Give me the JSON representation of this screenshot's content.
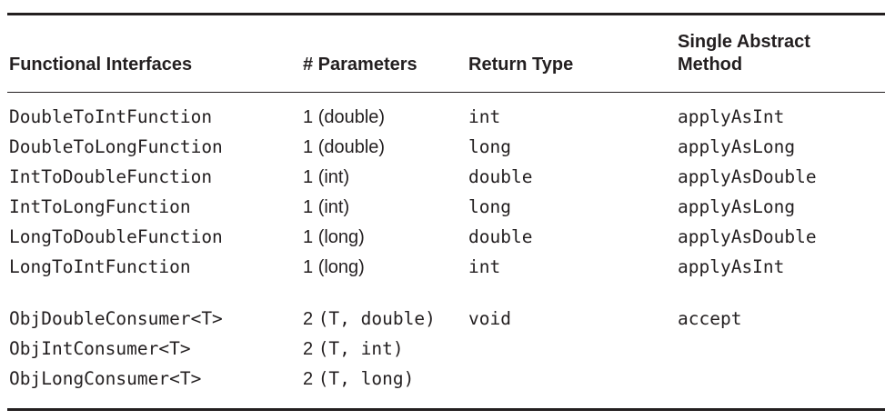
{
  "table": {
    "headers": {
      "interface": "Functional Interfaces",
      "params": "# Parameters",
      "return_type": "Return Type",
      "method": "Single Abstract Method"
    },
    "groups": [
      [
        {
          "interface": "DoubleToIntFunction",
          "params_count": "1",
          "params_type": "(double)",
          "return_type": "int",
          "method": "applyAsInt"
        },
        {
          "interface": "DoubleToLongFunction",
          "params_count": "1",
          "params_type": "(double)",
          "return_type": "long",
          "method": "applyAsLong"
        },
        {
          "interface": "IntToDoubleFunction",
          "params_count": "1",
          "params_type": "(int)",
          "return_type": "double",
          "method": "applyAsDouble"
        },
        {
          "interface": "IntToLongFunction",
          "params_count": "1",
          "params_type": "(int)",
          "return_type": "long",
          "method": "applyAsLong"
        },
        {
          "interface": "LongToDoubleFunction",
          "params_count": "1",
          "params_type": "(long)",
          "return_type": "double",
          "method": "applyAsDouble"
        },
        {
          "interface": "LongToIntFunction",
          "params_count": "1",
          "params_type": "(long)",
          "return_type": "int",
          "method": "applyAsInt"
        }
      ],
      [
        {
          "interface": "ObjDoubleConsumer<T>",
          "params_count": "2",
          "params_type": "(T, double)",
          "return_type": "void",
          "method": "accept"
        },
        {
          "interface": "ObjIntConsumer<T>",
          "params_count": "2",
          "params_type": "(T, int)",
          "return_type": "",
          "method": ""
        },
        {
          "interface": "ObjLongConsumer<T>",
          "params_count": "2",
          "params_type": "(T, long)",
          "return_type": "",
          "method": ""
        }
      ]
    ]
  }
}
